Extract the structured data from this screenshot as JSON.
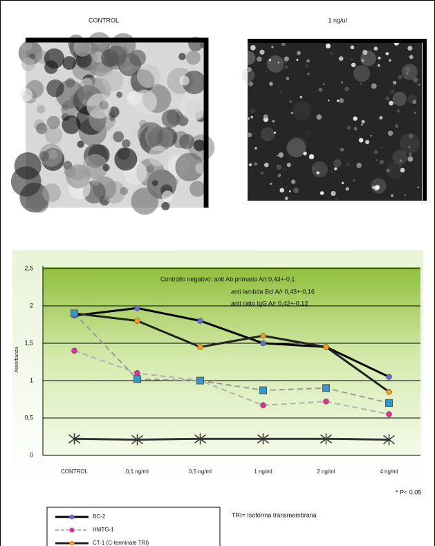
{
  "panels": [
    {
      "title": "CONTROL"
    },
    {
      "title": "1 ng/ul"
    }
  ],
  "chart_data": {
    "type": "line",
    "y_label": "Assorbanza",
    "annotation": [
      "Controllo negativo: anti Ab primario A/r:0,43+-0,1",
      "anti lambda Bcl A/r 0,43+-0,16",
      "anti ratto IgG A/r 0,42+-0,12"
    ],
    "categories": [
      "CONTROL",
      "0,1 ng/ml",
      "0,5 ng/ml",
      "1 ng/ml",
      "2 ng/ml",
      "4 ng/ml"
    ],
    "series": [
      {
        "name": "BC-2",
        "color": "#000000",
        "marker_color": "#6b6bd6",
        "values": [
          1.87,
          1.97,
          1.8,
          1.5,
          1.45,
          1.05
        ]
      },
      {
        "name": "HMTG-1",
        "color": "#b0b0b0",
        "marker_color": "#e0309a",
        "dash": true,
        "values": [
          1.4,
          1.1,
          1.0,
          0.67,
          0.72,
          0.55
        ]
      },
      {
        "name": "CT-1 (C-terminale TRI)",
        "color": "#222222",
        "marker_color": "#f0a020",
        "values": [
          1.9,
          1.8,
          1.45,
          1.6,
          1.45,
          0.85
        ]
      },
      {
        "color": "#999999",
        "marker_color": "#3399cc",
        "marker": "square",
        "dash": true,
        "values": [
          1.9,
          1.02,
          1.0,
          0.87,
          0.9,
          0.7
        ]
      },
      {
        "color": "#333333",
        "marker_color": "#333333",
        "marker": "star",
        "values": [
          0.22,
          0.21,
          0.22,
          0.22,
          0.22,
          0.21
        ]
      }
    ],
    "ylim": [
      0,
      2.5
    ],
    "yticks": [
      0,
      {
        "value": 0.5,
        "label": "0,5"
      },
      1,
      {
        "value": 1.5,
        "label": "1,5"
      },
      2,
      {
        "value": 2.5,
        "label": "2,5"
      }
    ],
    "grid": true,
    "significance_note": "* P< 0.05"
  },
  "footnote": "TRI= Isoforma transmembrana"
}
